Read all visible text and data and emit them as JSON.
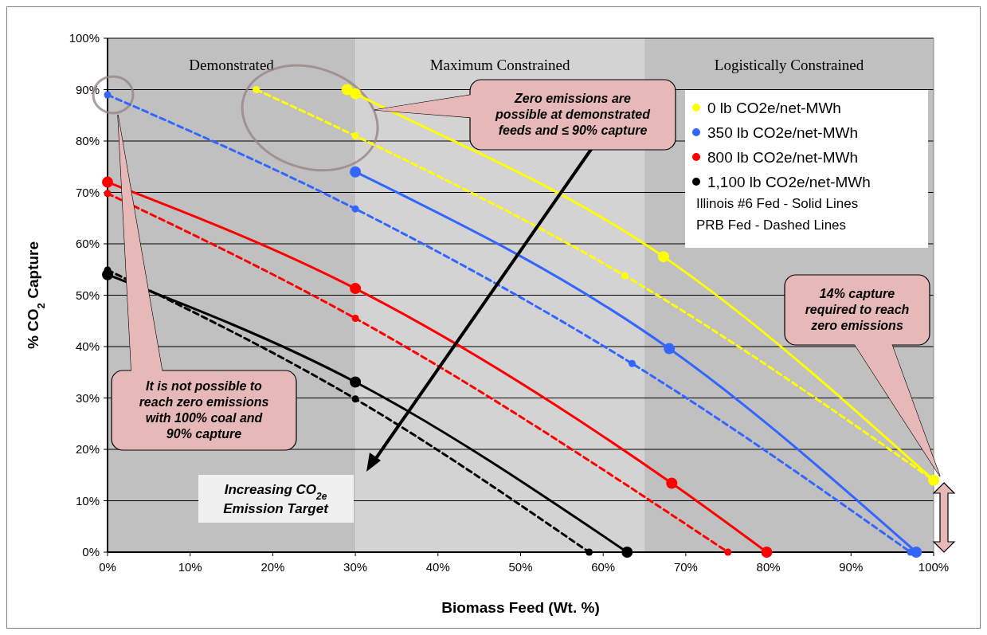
{
  "chart_data": {
    "type": "line",
    "xlabel": "Biomass Feed (Wt. %)",
    "ylabel": "% CO$_{2}$ Capture",
    "xlim": [
      0,
      100
    ],
    "ylim": [
      0,
      100
    ],
    "xticks": [
      {
        "value": 0,
        "label": "0%"
      },
      {
        "value": 10,
        "label": "10%"
      },
      {
        "value": 20,
        "label": "20%"
      },
      {
        "value": 30,
        "label": "30%"
      },
      {
        "value": 40,
        "label": "40%"
      },
      {
        "value": 50,
        "label": "50%"
      },
      {
        "value": 60,
        "label": "60%"
      },
      {
        "value": 70,
        "label": "70%"
      },
      {
        "value": 80,
        "label": "80%"
      },
      {
        "value": 90,
        "label": "90%"
      },
      {
        "value": 100,
        "label": "100%"
      }
    ],
    "yticks": [
      {
        "value": 0,
        "label": "0%"
      },
      {
        "value": 10,
        "label": "10%"
      },
      {
        "value": 20,
        "label": "20%"
      },
      {
        "value": 30,
        "label": "30%"
      },
      {
        "value": 40,
        "label": "40%"
      },
      {
        "value": 50,
        "label": "50%"
      },
      {
        "value": 60,
        "label": "60%"
      },
      {
        "value": 70,
        "label": "70%"
      },
      {
        "value": 80,
        "label": "80%"
      },
      {
        "value": 90,
        "label": "90%"
      },
      {
        "value": 100,
        "label": "100%"
      }
    ],
    "grid": "y",
    "legend": "top right",
    "marker": "circle",
    "bands": [
      {
        "axis": "x",
        "from": 0,
        "to": 30,
        "label": "Demonstrated",
        "color": "#c0c0c0"
      },
      {
        "axis": "x",
        "from": 30,
        "to": 65,
        "label": "Maximum Constrained",
        "color": "#d3d3d3"
      },
      {
        "axis": "x",
        "from": 65,
        "to": 100,
        "label": "Logistically Constrained",
        "color": "#c0c0c0"
      }
    ],
    "series": [
      {
        "name": "0 lb CO2e/net-MWh",
        "color": "#ffff00",
        "line_style": "solid",
        "x": [
          29,
          30,
          67.3,
          100
        ],
        "values": [
          90,
          89.2,
          57.5,
          14
        ]
      },
      {
        "color": "#ffff00",
        "line_style": "dashed",
        "x": [
          18,
          30,
          62.6,
          100
        ],
        "values": [
          90,
          81,
          53.8,
          14
        ]
      },
      {
        "name": "350 lb CO2e/net-MWh",
        "color": "#3366ff",
        "line_style": "solid",
        "x": [
          30,
          68,
          97.9
        ],
        "values": [
          74,
          39.6,
          0
        ]
      },
      {
        "color": "#3366ff",
        "line_style": "dashed",
        "x": [
          0,
          30,
          63.5,
          97.2
        ],
        "values": [
          89,
          66.8,
          36.7,
          0
        ]
      },
      {
        "name": "800 lb CO2e/net-MWh",
        "color": "#ff0000",
        "line_style": "solid",
        "x": [
          0,
          30,
          68.3,
          79.8
        ],
        "values": [
          72,
          51.3,
          13.4,
          0
        ]
      },
      {
        "color": "#ff0000",
        "line_style": "dashed",
        "x": [
          0,
          30,
          75.1
        ],
        "values": [
          69.8,
          45.5,
          0
        ]
      },
      {
        "name": "1,100 lb CO2e/net-MWh",
        "color": "#000000",
        "line_style": "solid",
        "x": [
          0,
          30,
          62.9
        ],
        "values": [
          54,
          33.1,
          0
        ]
      },
      {
        "color": "#000000",
        "line_style": "dashed",
        "x": [
          0,
          30,
          58.3
        ],
        "values": [
          54.9,
          29.8,
          0
        ]
      }
    ],
    "annotations": [
      "Zero emissions are possible at demonstrated feeds and ≤ 90% capture",
      "It is not possible to reach zero emissions with 100% coal and 90% capture",
      "14% capture required to reach zero emissions",
      "Increasing CO$_{2e}$ Emission Target",
      "Illinois #6 Fed - Solid Lines",
      "PRB Fed - Dashed Lines"
    ]
  }
}
